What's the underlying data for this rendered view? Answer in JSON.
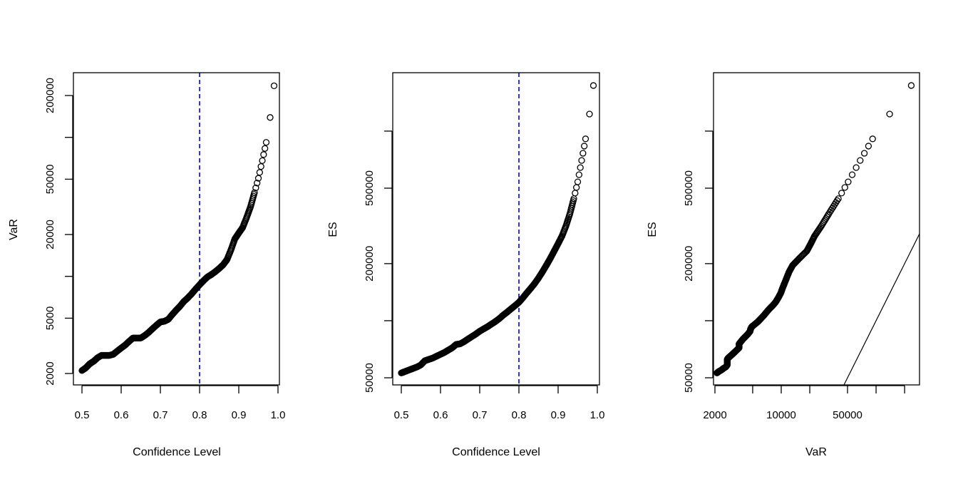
{
  "chart_data": [
    {
      "type": "scatter",
      "xlabel": "Confidence Level",
      "ylabel": "VaR",
      "x_scale": "linear",
      "y_scale": "log",
      "xlim": [
        0.5,
        1.0
      ],
      "x_ticks": [
        0.5,
        0.6,
        0.7,
        0.8,
        0.9,
        1.0
      ],
      "x_tick_labels": [
        "0.5",
        "0.6",
        "0.7",
        "0.8",
        "0.9",
        "1.0"
      ],
      "y_ticks": [
        2000,
        5000,
        10000,
        20000,
        50000,
        100000,
        200000
      ],
      "y_tick_labels": [
        "2000",
        "5000",
        "",
        "20000",
        "50000",
        "",
        "200000"
      ],
      "reference_line": {
        "type": "vertical",
        "x": 0.8,
        "style": "dashed",
        "color": "#0000ff"
      },
      "x": "confidence",
      "y": "var",
      "grid": false
    },
    {
      "type": "scatter",
      "xlabel": "Confidence Level",
      "ylabel": "ES",
      "x_scale": "linear",
      "y_scale": "log",
      "xlim": [
        0.5,
        1.0
      ],
      "x_ticks": [
        0.5,
        0.6,
        0.7,
        0.8,
        0.9,
        1.0
      ],
      "x_tick_labels": [
        "0.5",
        "0.6",
        "0.7",
        "0.8",
        "0.9",
        "1.0"
      ],
      "y_ticks": [
        50000,
        100000,
        200000,
        500000,
        1000000
      ],
      "y_tick_labels": [
        "50000",
        "",
        "200000",
        "500000",
        ""
      ],
      "reference_line": {
        "type": "vertical",
        "x": 0.8,
        "style": "dashed",
        "color": "#0000ff"
      },
      "x": "confidence",
      "y": "es",
      "grid": false
    },
    {
      "type": "scatter",
      "xlabel": "VaR",
      "ylabel": "ES",
      "x_scale": "log",
      "y_scale": "log",
      "x_ticks": [
        2000,
        5000,
        10000,
        20000,
        50000,
        100000,
        200000
      ],
      "x_tick_labels": [
        "2000",
        "",
        "10000",
        "",
        "50000",
        "",
        ""
      ],
      "y_ticks": [
        50000,
        100000,
        200000,
        500000,
        1000000
      ],
      "y_tick_labels": [
        "50000",
        "",
        "200000",
        "500000",
        ""
      ],
      "reference_line": {
        "type": "identity",
        "equation": "ES = VaR",
        "style": "solid",
        "color": "#000000"
      },
      "x": "var",
      "y": "es",
      "grid": false
    }
  ],
  "series": {
    "confidence": [
      0.5,
      0.51,
      0.52,
      0.53,
      0.54,
      0.55,
      0.56,
      0.57,
      0.58,
      0.59,
      0.6,
      0.61,
      0.62,
      0.63,
      0.64,
      0.65,
      0.66,
      0.67,
      0.68,
      0.69,
      0.7,
      0.71,
      0.72,
      0.73,
      0.74,
      0.75,
      0.76,
      0.77,
      0.78,
      0.79,
      0.8,
      0.81,
      0.82,
      0.83,
      0.84,
      0.85,
      0.86,
      0.87,
      0.88,
      0.89,
      0.9,
      0.91,
      0.92,
      0.93,
      0.94,
      0.95,
      0.96,
      0.97,
      0.98,
      0.99
    ],
    "var": [
      2100,
      2200,
      2350,
      2450,
      2600,
      2700,
      2700,
      2700,
      2750,
      2900,
      3050,
      3200,
      3400,
      3600,
      3600,
      3600,
      3750,
      3950,
      4200,
      4450,
      4700,
      4750,
      4900,
      5300,
      5700,
      6100,
      6600,
      7000,
      7500,
      8100,
      8700,
      9300,
      9900,
      10300,
      10800,
      11400,
      12100,
      13200,
      15500,
      18600,
      20500,
      22500,
      26500,
      31700,
      40000,
      50800,
      68000,
      92000,
      139000,
      235000
    ],
    "es": [
      53000,
      54000,
      55000,
      56000,
      57000,
      58500,
      61500,
      62500,
      63500,
      65000,
      66500,
      68000,
      70000,
      72000,
      75000,
      75500,
      77500,
      80000,
      82500,
      85000,
      88000,
      90500,
      93000,
      96000,
      99000,
      102600,
      107000,
      111000,
      115500,
      120000,
      125000,
      132000,
      140000,
      148000,
      157000,
      168000,
      181000,
      196000,
      213000,
      233000,
      255000,
      280000,
      316000,
      366000,
      440000,
      540000,
      700000,
      910000,
      1230000,
      1740000
    ]
  },
  "colors": {
    "points": "#000000",
    "reference_dashed": "#0000ff",
    "axes": "#000000",
    "background": "#ffffff"
  }
}
